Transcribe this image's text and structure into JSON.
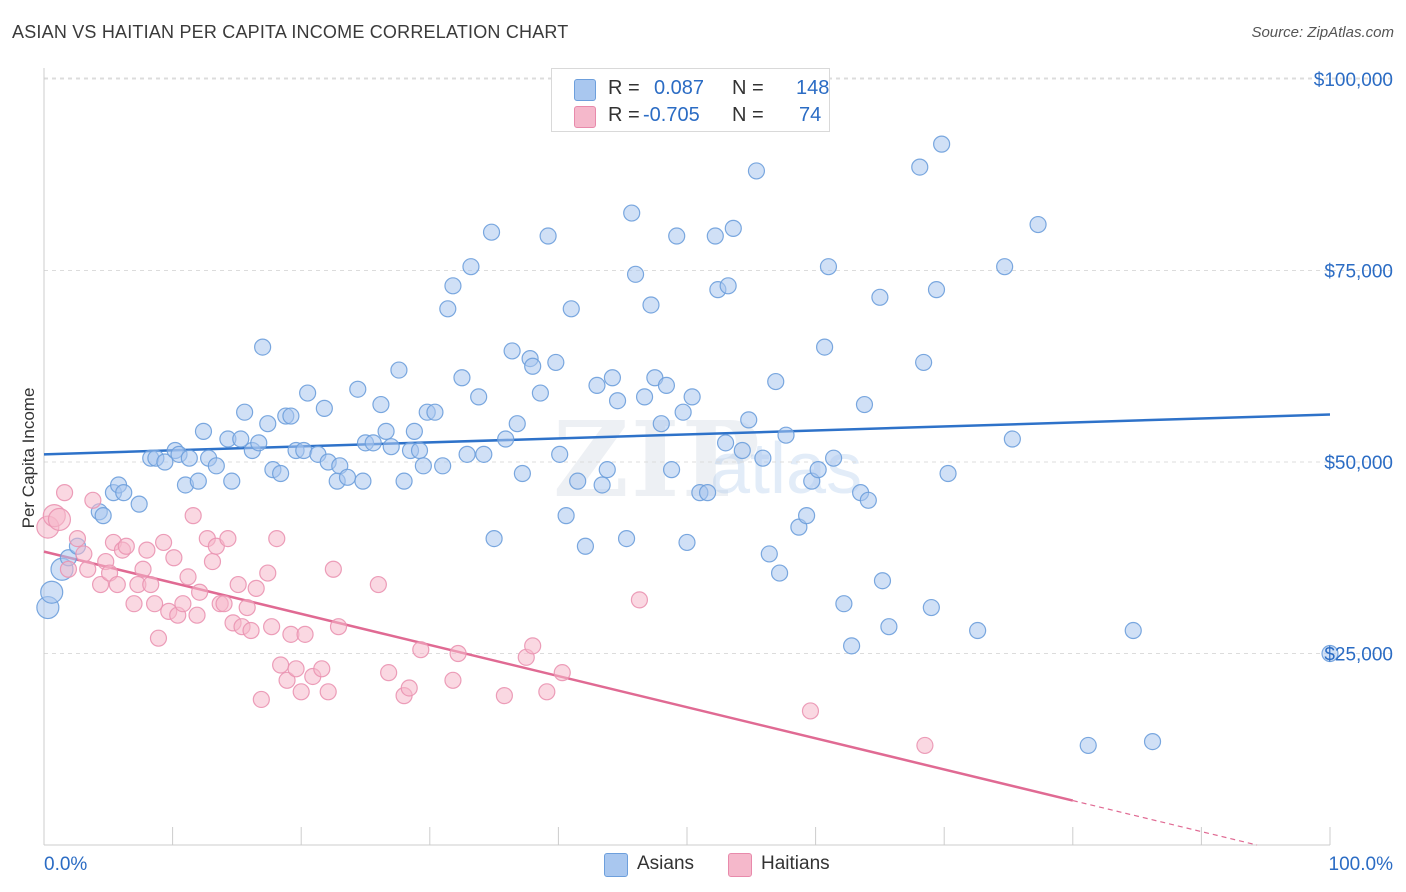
{
  "title": "ASIAN VS HAITIAN PER CAPITA INCOME CORRELATION CHART",
  "source": "Source: ZipAtlas.com",
  "watermark": {
    "zip": "ZIP",
    "atlas": "atlas"
  },
  "legend": {
    "rows": [
      {
        "r_label": "R =",
        "r_value": "0.087",
        "n_label": "N =",
        "n_value": "148",
        "color": "#a9c7ef"
      },
      {
        "r_label": "R =",
        "r_value": "-0.705",
        "n_label": "N =",
        "n_value": "74",
        "color": "#f5b8cb"
      }
    ]
  },
  "bottom_legend": [
    {
      "label": "Asians",
      "color": "#a9c7ef"
    },
    {
      "label": "Haitians",
      "color": "#f5b8cb"
    }
  ],
  "chart_data": {
    "type": "scatter",
    "title": "ASIAN VS HAITIAN PER CAPITA INCOME CORRELATION CHART",
    "xlabel": "",
    "ylabel": "Per Capita Income",
    "xlim": [
      0,
      100
    ],
    "ylim": [
      0,
      104000
    ],
    "x_tick_labels": [
      "0.0%",
      "100.0%"
    ],
    "y_ticks": [
      25000,
      50000,
      75000,
      100000
    ],
    "y_tick_labels": [
      "$25,000",
      "$50,000",
      "$75,000",
      "$100,000"
    ],
    "grid": true,
    "colors": {
      "asians_fill": "#a9c7ef",
      "asians_line": "#2e72c9",
      "haitians_fill": "#f5b8cb",
      "haitians_line": "#e06a93",
      "tick_label": "#2b6cc4"
    },
    "series": [
      {
        "name": "Asians",
        "trend": {
          "x0": 0,
          "y0": 51000,
          "x1": 100,
          "y1": 56200
        },
        "points": [
          [
            0.3,
            31000
          ],
          [
            0.6,
            33000
          ],
          [
            1.4,
            36000
          ],
          [
            1.9,
            37500
          ],
          [
            2.6,
            39000
          ],
          [
            4.3,
            43500
          ],
          [
            4.6,
            43000
          ],
          [
            5.4,
            46000
          ],
          [
            5.8,
            47000
          ],
          [
            6.2,
            46000
          ],
          [
            7.4,
            44500
          ],
          [
            8.3,
            50500
          ],
          [
            8.7,
            50500
          ],
          [
            9.4,
            50000
          ],
          [
            10.2,
            51500
          ],
          [
            10.5,
            51000
          ],
          [
            11.0,
            47000
          ],
          [
            11.3,
            50500
          ],
          [
            12.0,
            47500
          ],
          [
            12.4,
            54000
          ],
          [
            12.8,
            50500
          ],
          [
            13.4,
            49500
          ],
          [
            14.3,
            53000
          ],
          [
            14.6,
            47500
          ],
          [
            15.3,
            53000
          ],
          [
            15.6,
            56500
          ],
          [
            16.2,
            51500
          ],
          [
            16.7,
            52500
          ],
          [
            17.0,
            65000
          ],
          [
            17.4,
            55000
          ],
          [
            17.8,
            49000
          ],
          [
            18.4,
            48500
          ],
          [
            18.8,
            56000
          ],
          [
            19.2,
            56000
          ],
          [
            19.6,
            51500
          ],
          [
            20.2,
            51500
          ],
          [
            20.5,
            59000
          ],
          [
            21.3,
            51000
          ],
          [
            21.8,
            57000
          ],
          [
            22.1,
            50000
          ],
          [
            22.8,
            47500
          ],
          [
            23.0,
            49500
          ],
          [
            23.6,
            48000
          ],
          [
            24.4,
            59500
          ],
          [
            24.8,
            47500
          ],
          [
            25.0,
            52500
          ],
          [
            25.6,
            52500
          ],
          [
            26.2,
            57500
          ],
          [
            26.6,
            54000
          ],
          [
            27.0,
            52000
          ],
          [
            27.6,
            62000
          ],
          [
            28.0,
            47500
          ],
          [
            28.5,
            51500
          ],
          [
            28.8,
            54000
          ],
          [
            29.2,
            51500
          ],
          [
            29.5,
            49500
          ],
          [
            29.8,
            56500
          ],
          [
            30.4,
            56500
          ],
          [
            31.0,
            49500
          ],
          [
            31.4,
            70000
          ],
          [
            31.8,
            73000
          ],
          [
            32.5,
            61000
          ],
          [
            32.9,
            51000
          ],
          [
            33.2,
            75500
          ],
          [
            33.8,
            58500
          ],
          [
            34.2,
            51000
          ],
          [
            34.8,
            80000
          ],
          [
            35.0,
            40000
          ],
          [
            35.9,
            53000
          ],
          [
            36.4,
            64500
          ],
          [
            36.8,
            55000
          ],
          [
            37.2,
            48500
          ],
          [
            37.8,
            63500
          ],
          [
            38.0,
            62500
          ],
          [
            38.6,
            59000
          ],
          [
            39.2,
            79500
          ],
          [
            39.8,
            63000
          ],
          [
            40.1,
            51000
          ],
          [
            40.6,
            43000
          ],
          [
            41.0,
            70000
          ],
          [
            41.5,
            47500
          ],
          [
            42.1,
            39000
          ],
          [
            43.0,
            60000
          ],
          [
            43.4,
            47000
          ],
          [
            43.8,
            49000
          ],
          [
            44.2,
            61000
          ],
          [
            44.6,
            58000
          ],
          [
            45.3,
            40000
          ],
          [
            45.7,
            82500
          ],
          [
            46.0,
            74500
          ],
          [
            46.7,
            58500
          ],
          [
            47.2,
            70500
          ],
          [
            47.5,
            61000
          ],
          [
            48.0,
            55000
          ],
          [
            48.4,
            60000
          ],
          [
            48.8,
            49000
          ],
          [
            49.2,
            79500
          ],
          [
            49.7,
            56500
          ],
          [
            50.0,
            39500
          ],
          [
            50.4,
            58500
          ],
          [
            51.0,
            46000
          ],
          [
            51.6,
            46000
          ],
          [
            52.2,
            79500
          ],
          [
            52.4,
            72500
          ],
          [
            53.0,
            52500
          ],
          [
            53.2,
            73000
          ],
          [
            53.6,
            80500
          ],
          [
            54.3,
            51500
          ],
          [
            54.8,
            55500
          ],
          [
            55.4,
            88000
          ],
          [
            55.9,
            50500
          ],
          [
            56.4,
            38000
          ],
          [
            56.9,
            60500
          ],
          [
            57.2,
            35500
          ],
          [
            57.7,
            53500
          ],
          [
            58.7,
            41500
          ],
          [
            59.3,
            43000
          ],
          [
            59.7,
            47500
          ],
          [
            60.2,
            49000
          ],
          [
            60.7,
            65000
          ],
          [
            61.0,
            75500
          ],
          [
            61.4,
            50500
          ],
          [
            62.2,
            31500
          ],
          [
            62.8,
            26000
          ],
          [
            63.5,
            46000
          ],
          [
            63.8,
            57500
          ],
          [
            64.1,
            45000
          ],
          [
            65.0,
            71500
          ],
          [
            65.2,
            34500
          ],
          [
            65.7,
            28500
          ],
          [
            68.1,
            88500
          ],
          [
            68.4,
            63000
          ],
          [
            69.0,
            31000
          ],
          [
            69.4,
            72500
          ],
          [
            69.8,
            91500
          ],
          [
            70.3,
            48500
          ],
          [
            72.6,
            28000
          ],
          [
            74.7,
            75500
          ],
          [
            75.3,
            53000
          ],
          [
            77.3,
            81000
          ],
          [
            81.2,
            13000
          ],
          [
            84.7,
            28000
          ],
          [
            86.2,
            13500
          ],
          [
            100.0,
            25000
          ]
        ]
      },
      {
        "name": "Haitians",
        "trend": {
          "x0": 0,
          "y0": 38300,
          "x1": 80,
          "y1": 5800,
          "dashed_to": {
            "x": 100,
            "y": -2300
          }
        },
        "points": [
          [
            0.3,
            41500
          ],
          [
            0.8,
            43000
          ],
          [
            1.2,
            42500
          ],
          [
            1.6,
            46000
          ],
          [
            1.9,
            36000
          ],
          [
            2.6,
            40000
          ],
          [
            3.1,
            38000
          ],
          [
            3.4,
            36000
          ],
          [
            3.8,
            45000
          ],
          [
            4.4,
            34000
          ],
          [
            4.8,
            37000
          ],
          [
            5.1,
            35500
          ],
          [
            5.4,
            39500
          ],
          [
            5.7,
            34000
          ],
          [
            6.1,
            38500
          ],
          [
            6.4,
            39000
          ],
          [
            7.0,
            31500
          ],
          [
            7.3,
            34000
          ],
          [
            7.7,
            36000
          ],
          [
            8.0,
            38500
          ],
          [
            8.3,
            34000
          ],
          [
            8.6,
            31500
          ],
          [
            8.9,
            27000
          ],
          [
            9.3,
            39500
          ],
          [
            9.7,
            30500
          ],
          [
            10.1,
            37500
          ],
          [
            10.4,
            30000
          ],
          [
            10.8,
            31500
          ],
          [
            11.2,
            35000
          ],
          [
            11.6,
            43000
          ],
          [
            11.9,
            30000
          ],
          [
            12.1,
            33000
          ],
          [
            12.7,
            40000
          ],
          [
            13.1,
            37000
          ],
          [
            13.4,
            39000
          ],
          [
            13.7,
            31500
          ],
          [
            14.0,
            31500
          ],
          [
            14.3,
            40000
          ],
          [
            14.7,
            29000
          ],
          [
            15.1,
            34000
          ],
          [
            15.4,
            28500
          ],
          [
            15.8,
            31000
          ],
          [
            16.1,
            28000
          ],
          [
            16.5,
            33500
          ],
          [
            16.9,
            19000
          ],
          [
            17.4,
            35500
          ],
          [
            17.7,
            28500
          ],
          [
            18.1,
            40000
          ],
          [
            18.4,
            23500
          ],
          [
            18.9,
            21500
          ],
          [
            19.2,
            27500
          ],
          [
            19.6,
            23000
          ],
          [
            20.0,
            20000
          ],
          [
            20.3,
            27500
          ],
          [
            20.9,
            22000
          ],
          [
            21.6,
            23000
          ],
          [
            22.1,
            20000
          ],
          [
            22.5,
            36000
          ],
          [
            22.9,
            28500
          ],
          [
            26.0,
            34000
          ],
          [
            26.8,
            22500
          ],
          [
            28.0,
            19500
          ],
          [
            28.4,
            20500
          ],
          [
            29.3,
            25500
          ],
          [
            31.8,
            21500
          ],
          [
            32.2,
            25000
          ],
          [
            35.8,
            19500
          ],
          [
            37.5,
            24500
          ],
          [
            38.0,
            26000
          ],
          [
            39.1,
            20000
          ],
          [
            40.3,
            22500
          ],
          [
            46.3,
            32000
          ],
          [
            59.6,
            17500
          ],
          [
            68.5,
            13000
          ]
        ]
      }
    ]
  }
}
